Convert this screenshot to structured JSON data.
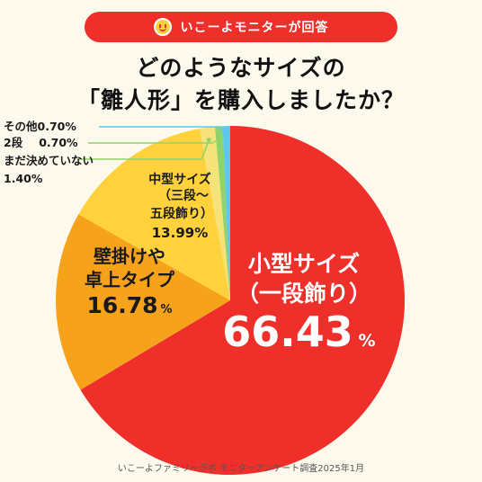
{
  "header": {
    "badge_text": "いこーよモニターが回答",
    "title_line1": "どのようなサイズの",
    "title_line2": "「雛人形」を購入しましたか？"
  },
  "footer": {
    "source": "いこーよファミリーラボ モニターアンケート調査2025年1月"
  },
  "colors": {
    "background": "#fdf9ed",
    "banner": "#ef2f2a",
    "small": "#ef2f2a",
    "wall": "#f7a21b",
    "middle": "#ffd23d",
    "two": "#8fd36b",
    "other": "#5ec8ec"
  },
  "chart_data": {
    "type": "pie",
    "slices": [
      {
        "label_lines": [
          "小型サイズ",
          "（一段飾り）"
        ],
        "value": 66.43,
        "value_text": "66.43",
        "unit": "%",
        "color": "#ef2f2a"
      },
      {
        "label_lines": [
          "壁掛けや",
          "卓上タイプ"
        ],
        "value": 16.78,
        "value_text": "16.78",
        "unit": "%",
        "color": "#f7a21b"
      },
      {
        "label_lines": [
          "中型サイズ",
          "（三段〜",
          "五段飾り）"
        ],
        "value": 13.99,
        "value_text": "13.99%",
        "color": "#ffd23d"
      },
      {
        "label_lines": [
          "まだ決めていない"
        ],
        "value": 1.4,
        "value_text": "1.40%",
        "color": "#f5e37a"
      },
      {
        "label_lines": [
          "2段"
        ],
        "value": 0.7,
        "value_text": "0.70%",
        "color": "#8fd36b"
      },
      {
        "label_lines": [
          "その他"
        ],
        "value": 0.7,
        "value_text": "0.70%",
        "color": "#5ec8ec"
      }
    ]
  }
}
